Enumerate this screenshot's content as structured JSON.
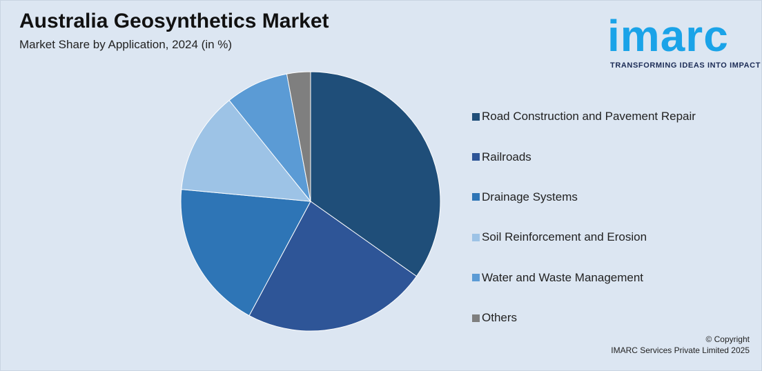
{
  "header": {
    "title": "Australia Geosynthetics Market",
    "subtitle": "Market Share by Application, 2024 (in %)"
  },
  "logo": {
    "word": "imarc",
    "tagline": "TRANSFORMING IDEAS INTO IMPACT",
    "color": "#1aa3e8"
  },
  "chart_data": {
    "type": "pie",
    "title": "Australia Geosynthetics Market",
    "subtitle": "Market Share by Application, 2024 (in %)",
    "legend_position": "right",
    "start_angle": "12 o'clock, clockwise",
    "series": [
      {
        "name": "Road Construction and Pavement Repair",
        "value": 35.5,
        "color": "#1f4e79"
      },
      {
        "name": "Railroads",
        "value": 23.5,
        "color": "#2e5597"
      },
      {
        "name": "Drainage Systems",
        "value": 19.0,
        "color": "#2e75b6"
      },
      {
        "name": "Soil Reinforcement and Erosion",
        "value": 13.0,
        "color": "#9dc3e6"
      },
      {
        "name": "Water and Waste Management",
        "value": 8.0,
        "color": "#5b9bd5"
      },
      {
        "name": "Others",
        "value": 3.0,
        "color": "#7f7f7f"
      }
    ]
  },
  "footer": {
    "copyright_line1": "© Copyright",
    "copyright_line2": "IMARC Services Private Limited 2025"
  }
}
